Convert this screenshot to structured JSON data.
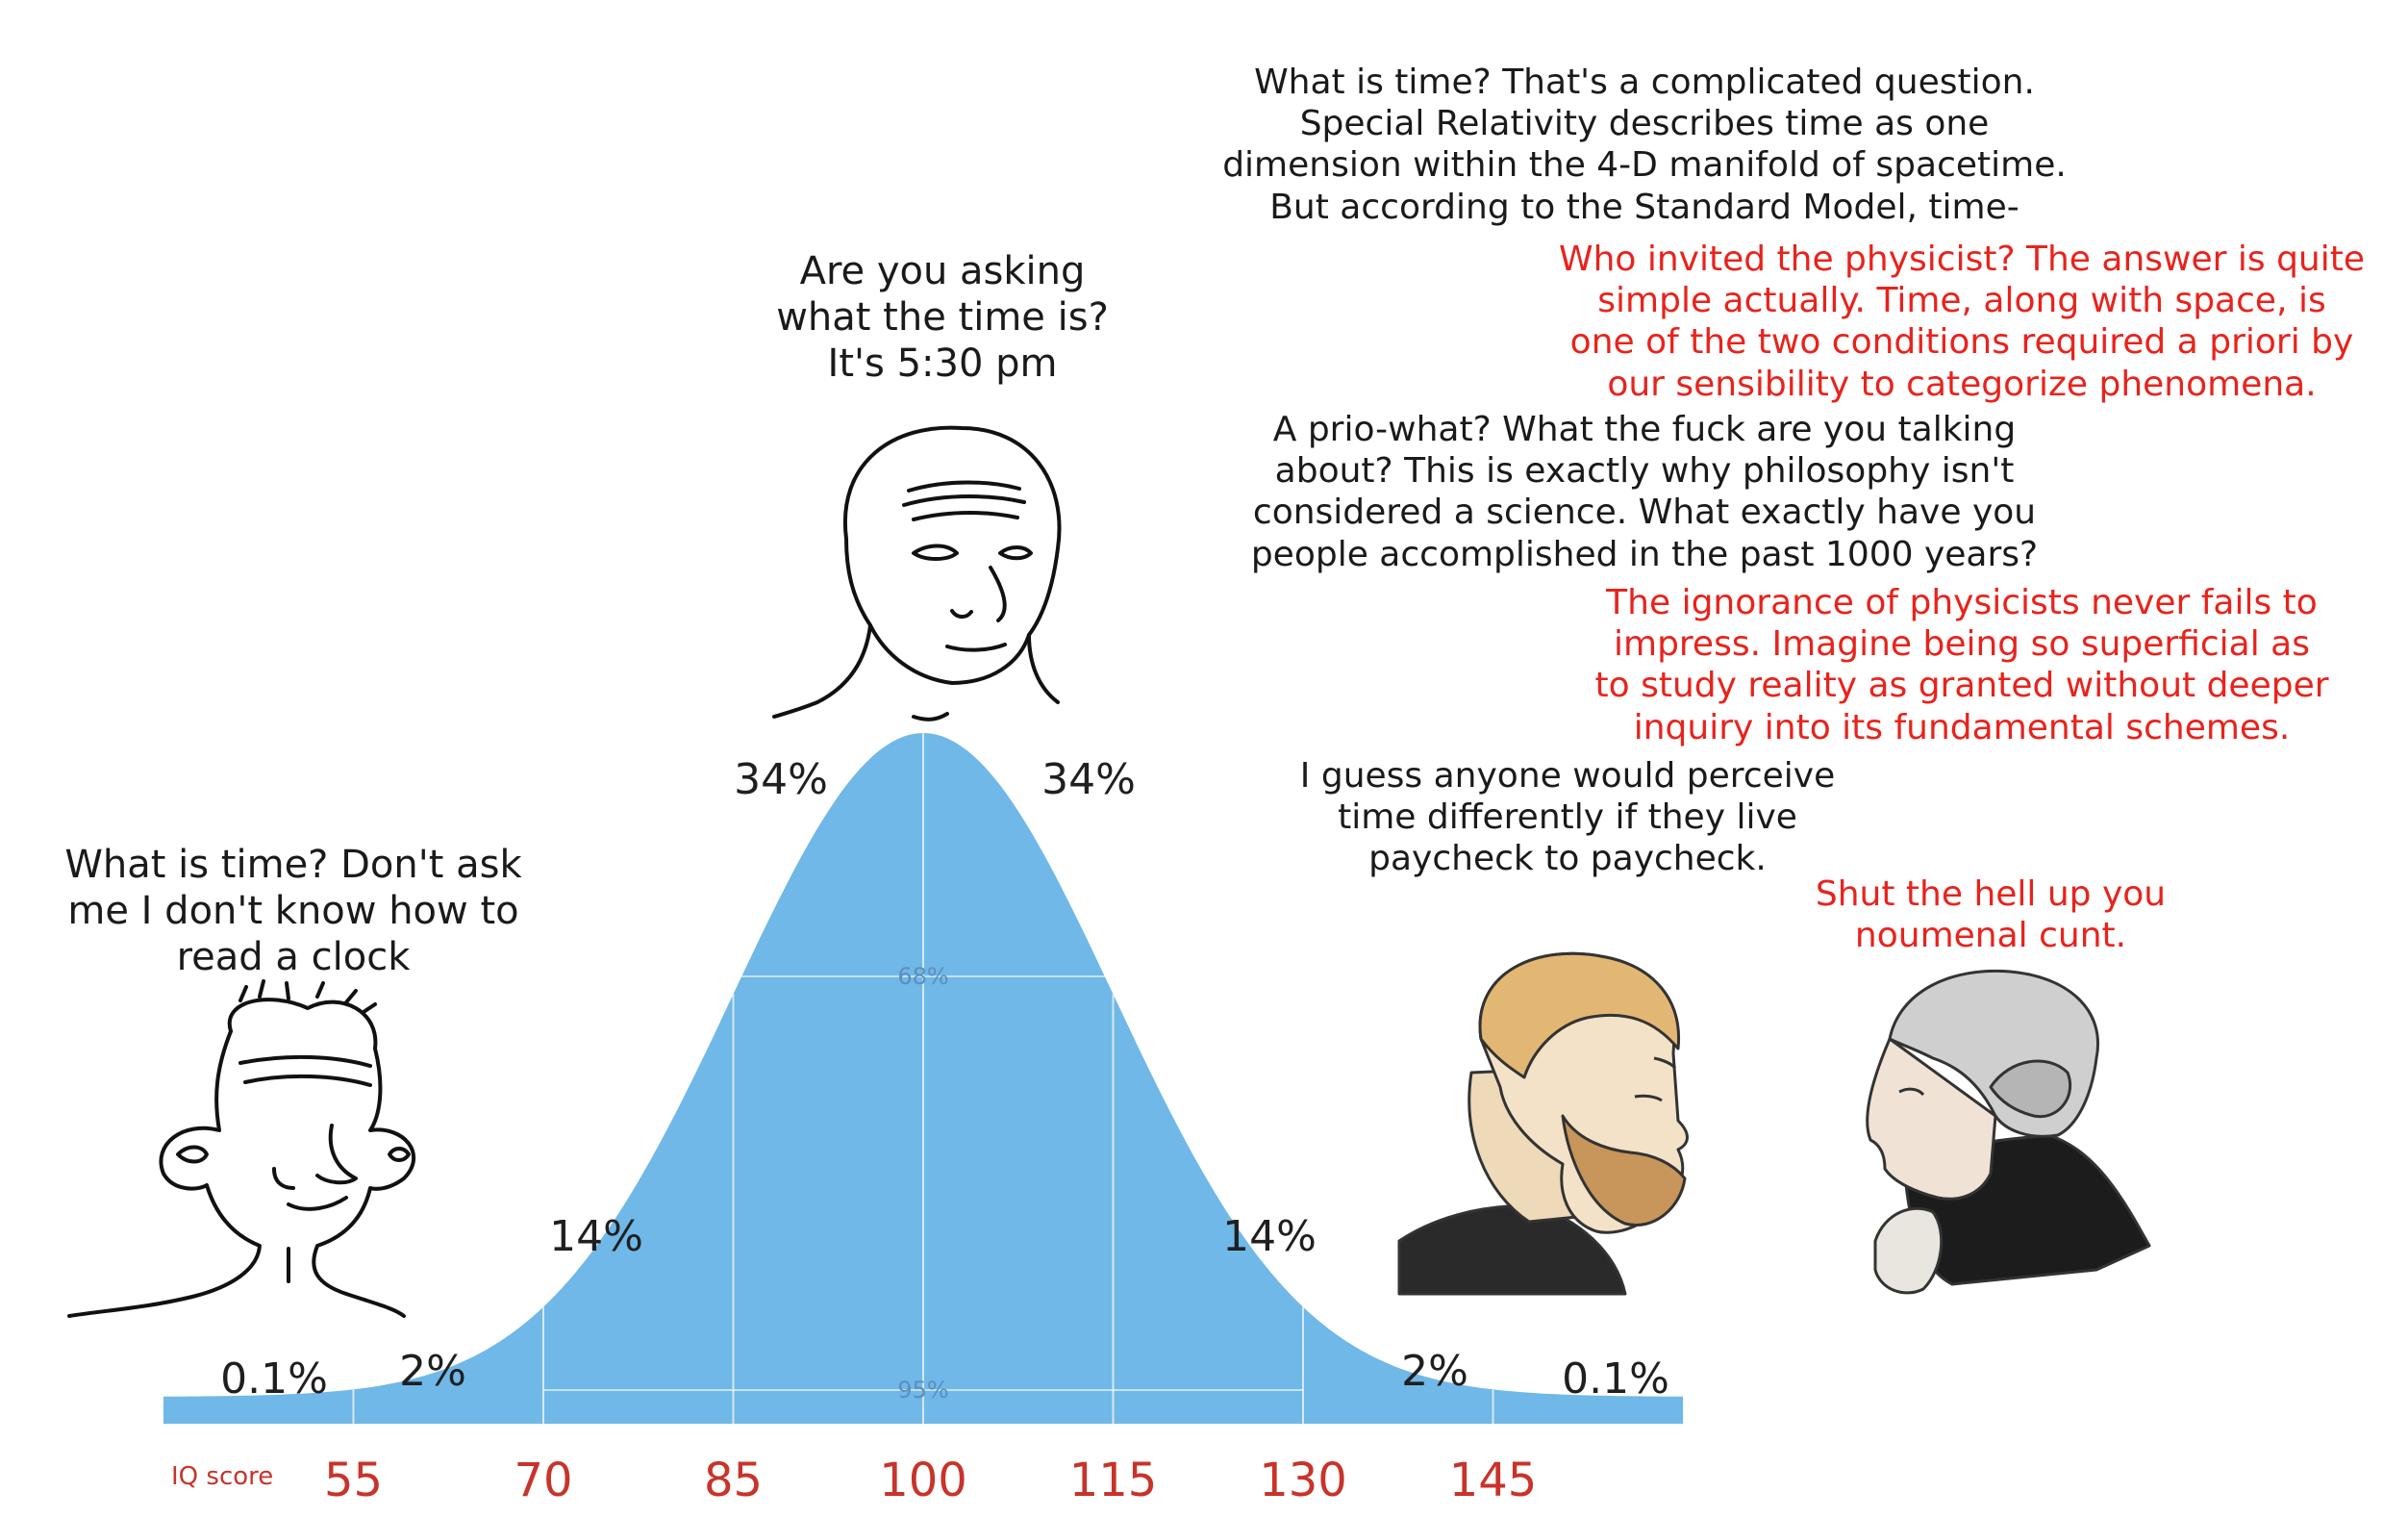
{
  "captions": {
    "low": "What is time? Don't ask\nme I don't know how to\nread a clock",
    "mid": "Are you asking\nwhat the time is?\nIt's 5:30 pm",
    "physicist_1": "What is time? That's a complicated question.\nSpecial Relativity describes time as one\ndimension within the 4-D manifold of spacetime.\nBut according to the Standard Model, time-",
    "philosopher_1": "Who invited the physicist? The answer is quite\nsimple actually. Time, along with space, is\none of the two conditions required a priori by\nour sensibility to categorize phenomena.",
    "physicist_2": "A prio-what? What the fuck are you talking\nabout? This is exactly why philosophy isn't\nconsidered a science. What exactly have you\npeople accomplished in the past 1000 years?",
    "philosopher_2": "The ignorance of physicists never fails to\nimpress. Imagine being so superficial as\nto study reality as granted without deeper\ninquiry into its fundamental schemes.",
    "chad": "I guess anyone would perceive\ntime differently if they live\npaycheck to paycheck.",
    "kant": "Shut the hell up you\nnoumenal cunt."
  },
  "chart_data": {
    "type": "area",
    "xlabel": "IQ score",
    "x_ticks": [
      55,
      70,
      85,
      100,
      115,
      130,
      145
    ],
    "segment_percents": [
      "0.1%",
      "2%",
      "14%",
      "34%",
      "34%",
      "14%",
      "2%",
      "0.1%"
    ],
    "inner_labels": [
      "68%",
      "95%"
    ],
    "mean": 100,
    "sd": 15,
    "xlim": [
      40,
      160
    ],
    "fill_color": "#6fb8e8"
  },
  "colors": {
    "black_text": "#1a1a1a",
    "red_text": "#e8231c",
    "axis_red": "#c8332a"
  },
  "icons": [
    "wojak-low-icon",
    "wojak-mid-icon",
    "chad-icon",
    "kant-icon"
  ]
}
